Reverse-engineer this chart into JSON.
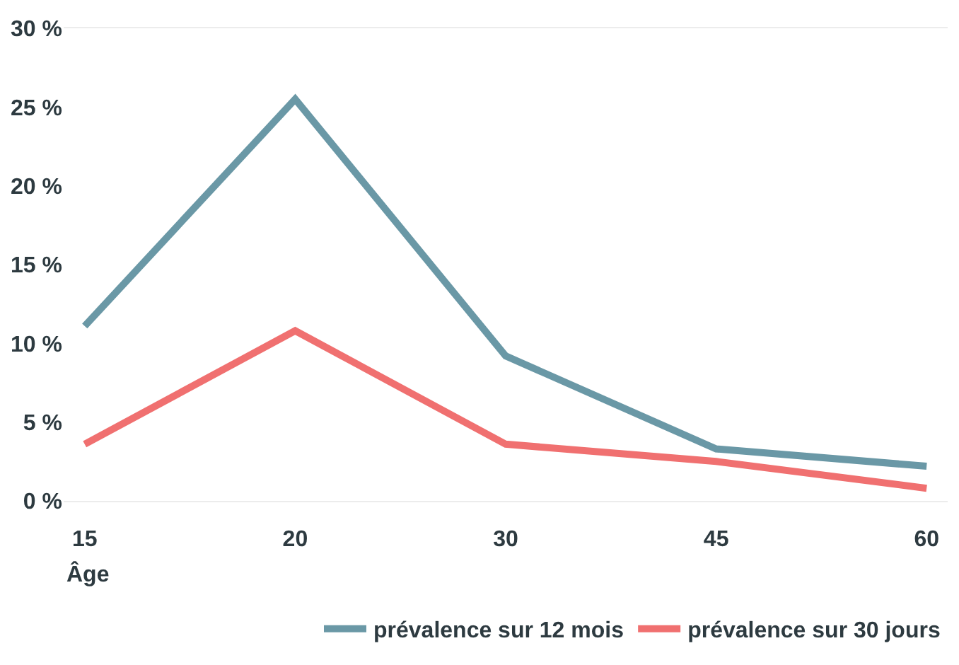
{
  "chart_data": {
    "type": "line",
    "xlabel": "Âge",
    "categories": [
      "15",
      "20",
      "30",
      "45",
      "60"
    ],
    "series": [
      {
        "name": "prévalence sur 12 mois",
        "color": "#6a98a6",
        "values": [
          11.1,
          25.5,
          9.2,
          3.3,
          2.2
        ]
      },
      {
        "name": "prévalence sur 30 jours",
        "color": "#f07070",
        "values": [
          3.6,
          10.8,
          3.6,
          2.5,
          0.8
        ]
      }
    ],
    "ylim": [
      0,
      30
    ],
    "yticks": [
      {
        "value": 0,
        "label": "0 %"
      },
      {
        "value": 5,
        "label": "5 %"
      },
      {
        "value": 10,
        "label": "10 %"
      },
      {
        "value": 15,
        "label": "15 %"
      },
      {
        "value": 20,
        "label": "20 %"
      },
      {
        "value": 25,
        "label": "25 %"
      },
      {
        "value": 30,
        "label": "30 %"
      }
    ],
    "legend": "bottom",
    "marker": "none",
    "line_style": "solid"
  }
}
